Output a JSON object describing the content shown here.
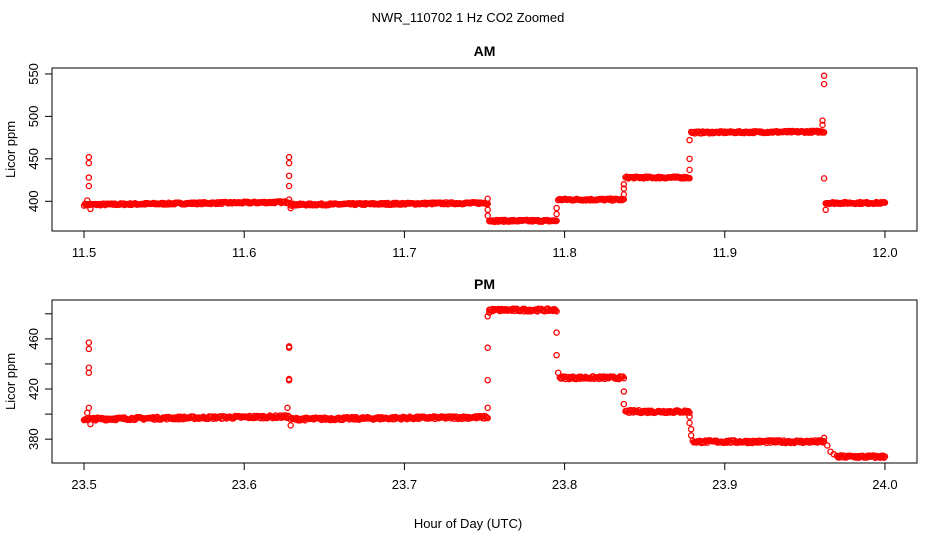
{
  "chart_data": {
    "type": "scatter",
    "title": "NWR_110702  1 Hz CO2 Zoomed",
    "xlabel": "Hour of Day (UTC)",
    "marker_color": "#ff0000",
    "panels": [
      {
        "title": "AM",
        "ylabel": "Licor ppm",
        "xlim": [
          11.48,
          12.02
        ],
        "ylim": [
          365,
          557
        ],
        "xticks": [
          11.5,
          11.6,
          11.7,
          11.8,
          11.9,
          12.0
        ],
        "xtick_labels": [
          "11.5",
          "11.6",
          "11.7",
          "11.8",
          "11.9",
          "12.0"
        ],
        "yticks": [
          400,
          450,
          500,
          550
        ],
        "ytick_labels": [
          "400",
          "450",
          "500",
          "550"
        ],
        "plateaus": [
          [
            11.5,
            11.628,
            396,
            399
          ],
          [
            11.629,
            11.752,
            396,
            398
          ],
          [
            11.753,
            11.795,
            377,
            377
          ],
          [
            11.796,
            11.837,
            402,
            402
          ],
          [
            11.838,
            11.878,
            428,
            428
          ],
          [
            11.879,
            11.962,
            481,
            482
          ],
          [
            11.963,
            12.0,
            398,
            398
          ]
        ],
        "transients": [
          [
            11.503,
            418
          ],
          [
            11.503,
            428
          ],
          [
            11.503,
            445
          ],
          [
            11.503,
            452
          ],
          [
            11.502,
            401
          ],
          [
            11.504,
            391
          ],
          [
            11.628,
            418
          ],
          [
            11.628,
            430
          ],
          [
            11.628,
            445
          ],
          [
            11.628,
            452
          ],
          [
            11.628,
            402
          ],
          [
            11.629,
            392
          ],
          [
            11.752,
            403
          ],
          [
            11.752,
            390
          ],
          [
            11.752,
            383
          ],
          [
            11.795,
            385
          ],
          [
            11.795,
            392
          ],
          [
            11.837,
            408
          ],
          [
            11.837,
            415
          ],
          [
            11.837,
            420
          ],
          [
            11.878,
            437
          ],
          [
            11.878,
            450
          ],
          [
            11.878,
            472
          ],
          [
            11.961,
            495
          ],
          [
            11.961,
            490
          ],
          [
            11.962,
            538
          ],
          [
            11.962,
            548
          ],
          [
            11.962,
            427
          ],
          [
            11.963,
            390
          ]
        ]
      },
      {
        "title": "PM",
        "ylabel": "Licor ppm",
        "xlim": [
          23.48,
          24.02
        ],
        "ylim": [
          361,
          491
        ],
        "xticks": [
          23.5,
          23.6,
          23.7,
          23.8,
          23.9,
          24.0
        ],
        "xtick_labels": [
          "23.5",
          "23.6",
          "23.7",
          "23.8",
          "23.9",
          "24.0"
        ],
        "yticks": [
          380,
          400,
          420,
          440,
          460,
          480
        ],
        "ytick_labels": [
          "380",
          "",
          "420",
          "",
          "460",
          ""
        ],
        "plateaus": [
          [
            23.5,
            23.628,
            396,
            398
          ],
          [
            23.629,
            23.752,
            396,
            397.5
          ],
          [
            23.753,
            23.795,
            483,
            483
          ],
          [
            23.797,
            23.837,
            429,
            429
          ],
          [
            23.838,
            23.878,
            402,
            402
          ],
          [
            23.88,
            23.962,
            378,
            378
          ],
          [
            23.97,
            24.0,
            366,
            366
          ]
        ],
        "transients": [
          [
            23.503,
            433
          ],
          [
            23.503,
            437
          ],
          [
            23.503,
            452
          ],
          [
            23.503,
            457
          ],
          [
            23.502,
            401
          ],
          [
            23.503,
            405
          ],
          [
            23.504,
            392
          ],
          [
            23.628,
            428
          ],
          [
            23.628,
            427
          ],
          [
            23.628,
            453
          ],
          [
            23.628,
            454
          ],
          [
            23.627,
            405
          ],
          [
            23.629,
            391
          ],
          [
            23.752,
            405
          ],
          [
            23.752,
            427
          ],
          [
            23.752,
            453
          ],
          [
            23.752,
            478
          ],
          [
            23.753,
            481
          ],
          [
            23.795,
            465
          ],
          [
            23.795,
            447
          ],
          [
            23.796,
            433
          ],
          [
            23.837,
            418
          ],
          [
            23.837,
            408
          ],
          [
            23.878,
            398
          ],
          [
            23.878,
            393
          ],
          [
            23.879,
            388
          ],
          [
            23.879,
            383
          ],
          [
            23.962,
            381
          ],
          [
            23.964,
            375
          ],
          [
            23.966,
            370
          ],
          [
            23.968,
            368
          ]
        ]
      }
    ]
  }
}
